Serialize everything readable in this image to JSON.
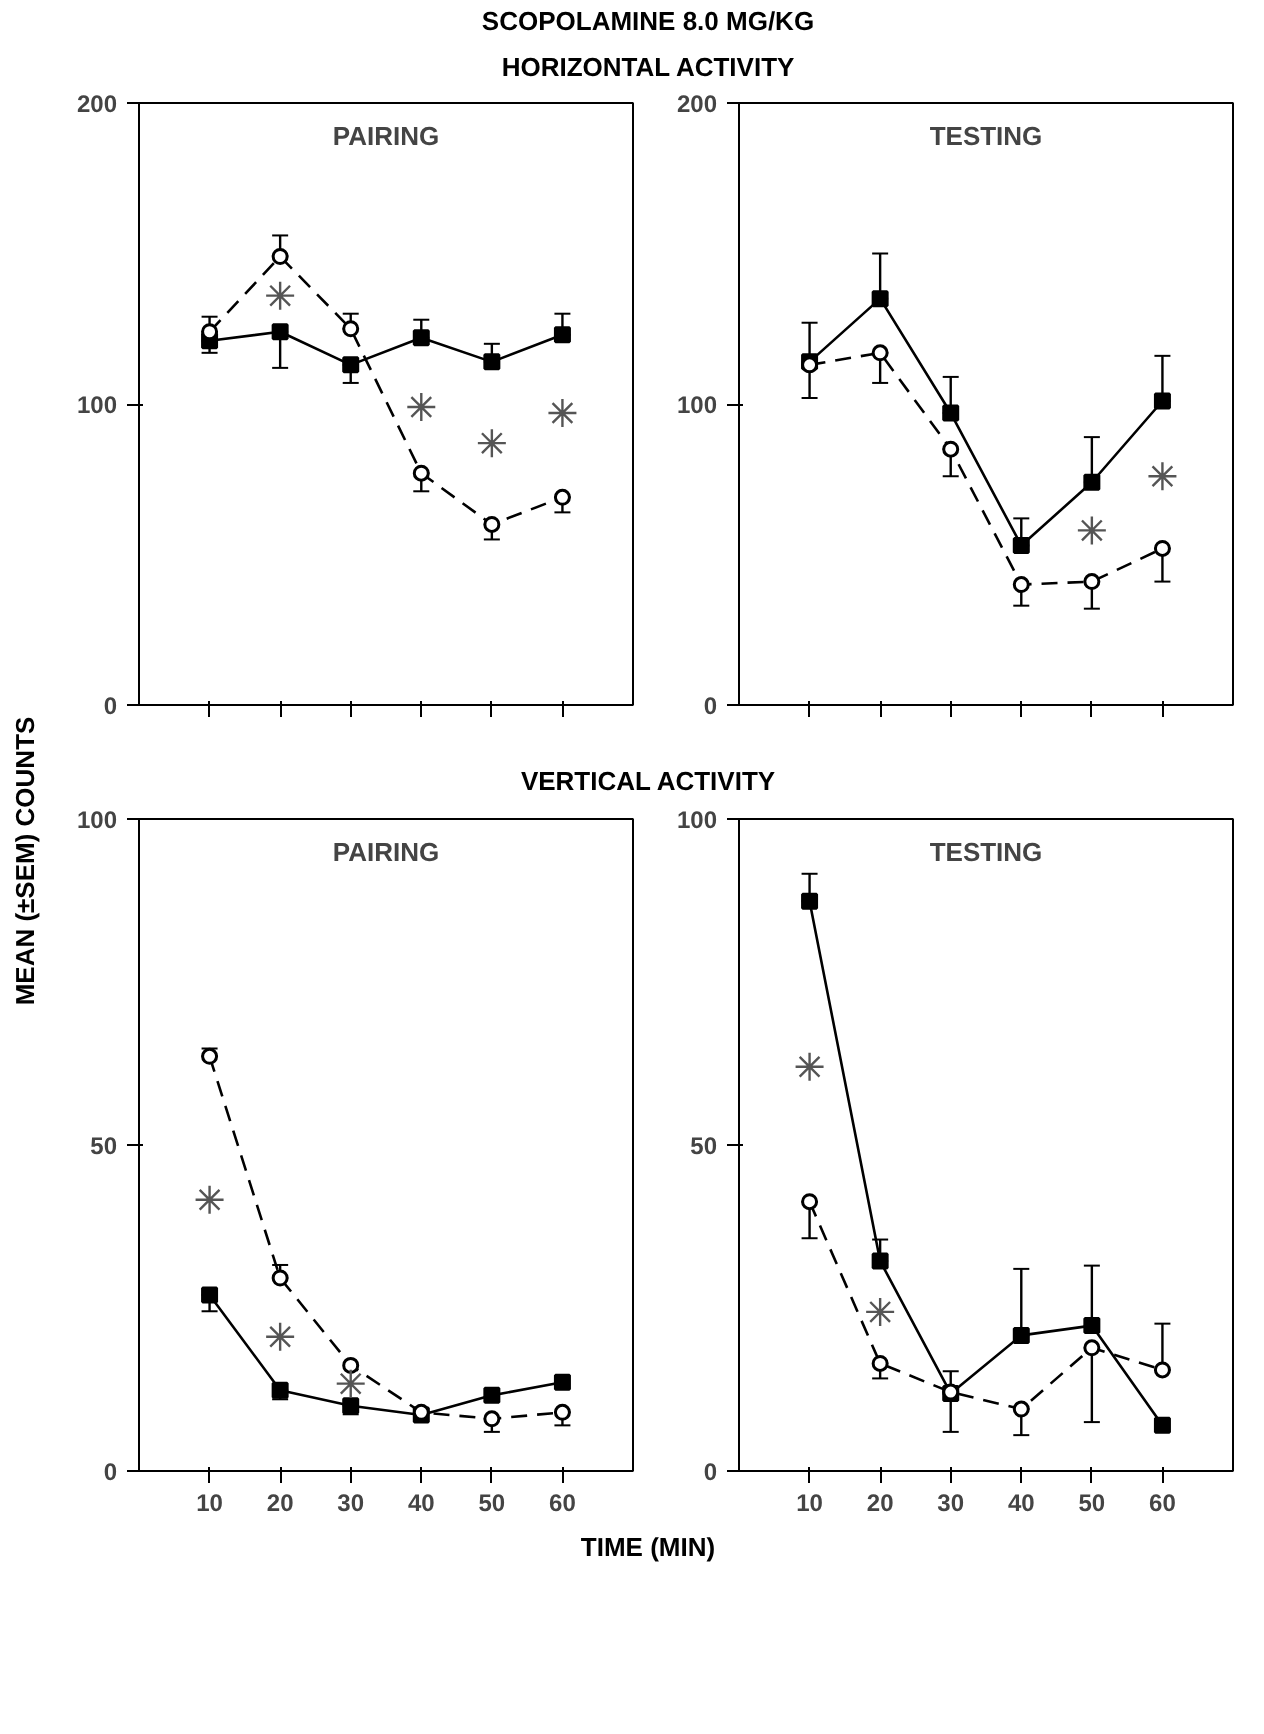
{
  "chart_data": [
    {
      "type": "line",
      "title": "PAIRING",
      "ylabel": "MEAN (±SEM) COUNTS",
      "annotations": [
        "SCOPOLAMINE 8.0 MG/KG",
        "HORIZONTAL ACTIVITY"
      ],
      "x": [
        10,
        20,
        30,
        40,
        50,
        60
      ],
      "xlim": [
        0,
        70
      ],
      "xticks": [
        10,
        20,
        30,
        40,
        50,
        60
      ],
      "ylim": [
        0,
        200
      ],
      "yticks": [
        0,
        100,
        200
      ],
      "grid": false,
      "tick_labels": "y",
      "series": [
        {
          "color": "#000000",
          "marker": "square",
          "line_style": "solid",
          "values": [
            121,
            124,
            113,
            122,
            114,
            123
          ],
          "errors": [
            [
              117,
              121
            ],
            [
              112,
              124
            ],
            [
              107,
              113
            ],
            [
              122,
              128
            ],
            [
              114,
              120
            ],
            [
              123,
              130
            ]
          ]
        },
        {
          "color": "#000000",
          "marker": "circle",
          "line_style": "dashed",
          "values": [
            124,
            149,
            125,
            77,
            60,
            69
          ],
          "errors": [
            [
              124,
              129
            ],
            [
              149,
              156
            ],
            [
              125,
              130
            ],
            [
              71,
              77
            ],
            [
              55,
              60
            ],
            [
              64,
              69
            ]
          ]
        },
        {
          "type": "scatter",
          "color": "#555555",
          "marker": "cross",
          "x": [
            20,
            40,
            50,
            60
          ],
          "values": [
            136,
            99,
            87,
            97
          ]
        }
      ]
    },
    {
      "type": "line",
      "title": "TESTING",
      "x": [
        10,
        20,
        30,
        40,
        50,
        60
      ],
      "xlim": [
        0,
        70
      ],
      "xticks": [
        10,
        20,
        30,
        40,
        50,
        60
      ],
      "ylim": [
        0,
        200
      ],
      "yticks": [
        0,
        100,
        200
      ],
      "grid": false,
      "tick_labels": "y",
      "series": [
        {
          "color": "#000000",
          "marker": "square",
          "line_style": "solid",
          "values": [
            114,
            135,
            97,
            53,
            74,
            101
          ],
          "errors": [
            [
              114,
              127
            ],
            [
              135,
              150
            ],
            [
              97,
              109
            ],
            [
              53,
              62
            ],
            [
              74,
              89
            ],
            [
              101,
              116
            ]
          ]
        },
        {
          "color": "#000000",
          "marker": "circle",
          "line_style": "dashed",
          "values": [
            113,
            117,
            85,
            40,
            41,
            52
          ],
          "errors": [
            [
              102,
              113
            ],
            [
              107,
              117
            ],
            [
              76,
              85
            ],
            [
              33,
              40
            ],
            [
              32,
              41
            ],
            [
              41,
              52
            ]
          ]
        },
        {
          "type": "scatter",
          "color": "#555555",
          "marker": "cross",
          "x": [
            50,
            60
          ],
          "values": [
            58,
            76
          ]
        }
      ]
    },
    {
      "type": "line",
      "title": "PAIRING",
      "xlabel": "TIME (MIN)",
      "annotations": [
        "VERTICAL ACTIVITY"
      ],
      "x": [
        10,
        20,
        30,
        40,
        50,
        60
      ],
      "xlim": [
        0,
        70
      ],
      "xticks": [
        10,
        20,
        30,
        40,
        50,
        60
      ],
      "ylim": [
        0,
        100
      ],
      "yticks": [
        0,
        50,
        100
      ],
      "grid": false,
      "series": [
        {
          "color": "#000000",
          "marker": "square",
          "line_style": "solid",
          "values": [
            27,
            12.4,
            10,
            8.6,
            11.6,
            13.6
          ],
          "errors": [
            [
              24.5,
              27
            ],
            [
              11,
              12.4
            ],
            [
              8.7,
              10
            ],
            null,
            null,
            null
          ]
        },
        {
          "color": "#000000",
          "marker": "circle",
          "line_style": "dashed",
          "values": [
            63.6,
            29.6,
            16.2,
            9,
            8,
            9
          ],
          "errors": [
            [
              63.6,
              64.8
            ],
            [
              29.6,
              31.6
            ],
            null,
            null,
            [
              6,
              8
            ],
            [
              7,
              9
            ]
          ]
        },
        {
          "type": "scatter",
          "color": "#555555",
          "marker": "cross",
          "x": [
            10,
            20,
            30
          ],
          "values": [
            41.6,
            20.6,
            13.4
          ]
        }
      ]
    },
    {
      "type": "line",
      "title": "TESTING",
      "x": [
        10,
        20,
        30,
        40,
        50,
        60
      ],
      "xlim": [
        0,
        70
      ],
      "xticks": [
        10,
        20,
        30,
        40,
        50,
        60
      ],
      "ylim": [
        0,
        100
      ],
      "yticks": [
        0,
        50,
        100
      ],
      "grid": false,
      "series": [
        {
          "color": "#000000",
          "marker": "square",
          "line_style": "solid",
          "values": [
            87.4,
            32.2,
            11.9,
            20.8,
            22.3,
            7
          ],
          "errors": [
            [
              87.4,
              91.6
            ],
            [
              32.2,
              35.5
            ],
            [
              6,
              11.9
            ],
            [
              20.8,
              31
            ],
            [
              22.3,
              31.5
            ],
            null
          ]
        },
        {
          "color": "#000000",
          "marker": "circle",
          "line_style": "dashed",
          "values": [
            41.3,
            16.5,
            12.1,
            9.5,
            18.9,
            15.5
          ],
          "errors": [
            [
              35.7,
              41.3
            ],
            [
              14.2,
              16.5
            ],
            [
              12.1,
              15.3
            ],
            [
              5.5,
              9.5
            ],
            [
              7.5,
              18.9
            ],
            [
              15.5,
              22.6
            ]
          ]
        },
        {
          "type": "scatter",
          "color": "#555555",
          "marker": "cross",
          "x": [
            10,
            20
          ],
          "values": [
            62,
            24.4
          ]
        }
      ]
    }
  ]
}
